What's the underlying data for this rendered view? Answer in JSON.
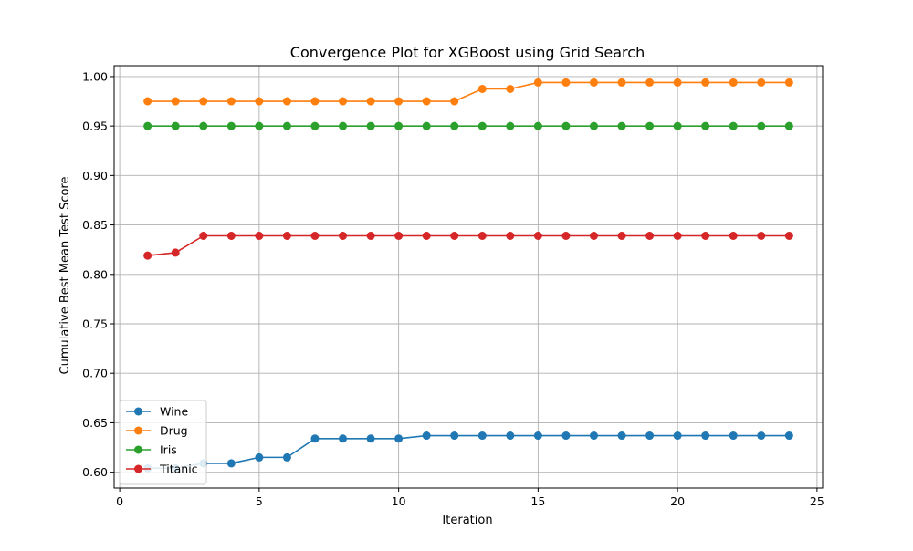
{
  "chart_data": {
    "type": "line",
    "title": "Convergence Plot for XGBoost using Grid Search",
    "xlabel": "Iteration",
    "ylabel": "Cumulative Best Mean Test Score",
    "xlim": [
      -0.2,
      25.2
    ],
    "ylim": [
      0.584,
      1.011
    ],
    "xticks": [
      0,
      5,
      10,
      15,
      20,
      25
    ],
    "xtick_labels": [
      "0",
      "5",
      "10",
      "15",
      "20",
      "25"
    ],
    "yticks": [
      0.6,
      0.65,
      0.7,
      0.75,
      0.8,
      0.85,
      0.9,
      0.95,
      1.0
    ],
    "ytick_labels": [
      "0.60",
      "0.65",
      "0.70",
      "0.75",
      "0.80",
      "0.85",
      "0.90",
      "0.95",
      "1.00"
    ],
    "grid": true,
    "legend_position": "lower-left",
    "x": [
      1,
      2,
      3,
      4,
      5,
      6,
      7,
      8,
      9,
      10,
      11,
      12,
      13,
      14,
      15,
      16,
      17,
      18,
      19,
      20,
      21,
      22,
      23,
      24
    ],
    "series": [
      {
        "name": "Wine",
        "color": "#1f77b4",
        "values": [
          0.604,
          0.604,
          0.609,
          0.609,
          0.615,
          0.615,
          0.634,
          0.634,
          0.634,
          0.634,
          0.637,
          0.637,
          0.637,
          0.637,
          0.637,
          0.637,
          0.637,
          0.637,
          0.637,
          0.637,
          0.637,
          0.637,
          0.637,
          0.637
        ]
      },
      {
        "name": "Drug",
        "color": "#ff7f0e",
        "values": [
          0.975,
          0.975,
          0.975,
          0.975,
          0.975,
          0.975,
          0.975,
          0.975,
          0.975,
          0.975,
          0.975,
          0.975,
          0.9875,
          0.9875,
          0.994,
          0.994,
          0.994,
          0.994,
          0.994,
          0.994,
          0.994,
          0.994,
          0.994,
          0.994
        ]
      },
      {
        "name": "Iris",
        "color": "#2ca02c",
        "values": [
          0.95,
          0.95,
          0.95,
          0.95,
          0.95,
          0.95,
          0.95,
          0.95,
          0.95,
          0.95,
          0.95,
          0.95,
          0.95,
          0.95,
          0.95,
          0.95,
          0.95,
          0.95,
          0.95,
          0.95,
          0.95,
          0.95,
          0.95,
          0.95
        ]
      },
      {
        "name": "Titanic",
        "color": "#d62728",
        "values": [
          0.819,
          0.822,
          0.839,
          0.839,
          0.839,
          0.839,
          0.839,
          0.839,
          0.839,
          0.839,
          0.839,
          0.839,
          0.839,
          0.839,
          0.839,
          0.839,
          0.839,
          0.839,
          0.839,
          0.839,
          0.839,
          0.839,
          0.839,
          0.839
        ]
      }
    ]
  }
}
